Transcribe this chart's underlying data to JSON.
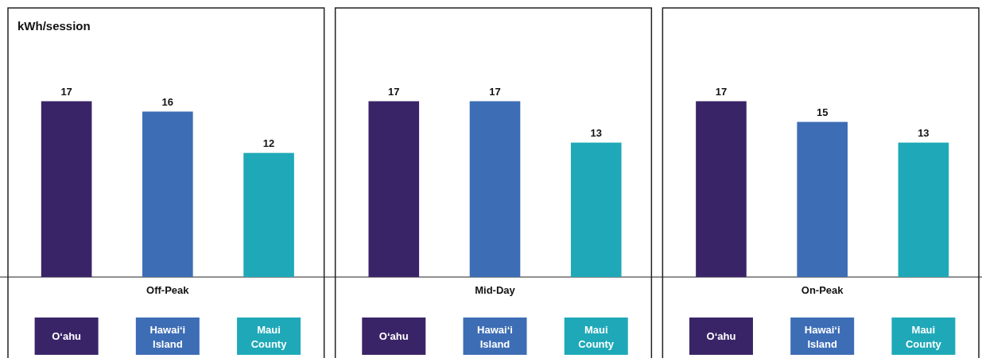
{
  "chart_data": [
    {
      "type": "bar",
      "ylabel": "kWh/session",
      "xlabel": "Off-Peak",
      "categories": [
        "Oʻahu",
        "Hawaiʻi Island",
        "Maui County"
      ],
      "values": [
        17,
        16,
        12
      ],
      "colors": [
        "#3a2468",
        "#3d6db5",
        "#1fa9b8"
      ],
      "data_labels": true
    },
    {
      "type": "bar",
      "xlabel": "Mid-Day",
      "categories": [
        "Oʻahu",
        "Hawaiʻi Island",
        "Maui County"
      ],
      "values": [
        17,
        17,
        13
      ],
      "colors": [
        "#3a2468",
        "#3d6db5",
        "#1fa9b8"
      ],
      "data_labels": true
    },
    {
      "type": "bar",
      "xlabel": "On-Peak",
      "categories": [
        "Oʻahu",
        "Hawaiʻi Island",
        "Maui County"
      ],
      "values": [
        17,
        15,
        13
      ],
      "colors": [
        "#3a2468",
        "#3d6db5",
        "#1fa9b8"
      ],
      "data_labels": true
    }
  ]
}
